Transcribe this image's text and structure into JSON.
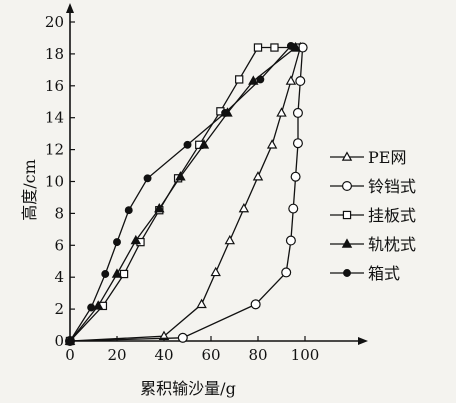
{
  "chart_data": {
    "type": "line",
    "title": "",
    "xlabel": "累积输沙量/g",
    "ylabel": "高度/cm",
    "xlim": [
      0,
      120
    ],
    "ylim": [
      0,
      20
    ],
    "xticks": [
      "0",
      "20",
      "40",
      "60",
      "80",
      "100"
    ],
    "yticks": [
      "0",
      "2",
      "4",
      "6",
      "8",
      "10",
      "12",
      "14",
      "16",
      "18",
      "20"
    ],
    "grid": false,
    "legend_position": "right",
    "series": [
      {
        "name": "PE网",
        "marker": "open-triangle",
        "x": [
          0,
          40,
          56,
          62,
          68,
          74,
          80,
          86,
          90,
          94,
          98
        ],
        "y": [
          0,
          0.3,
          2.3,
          4.3,
          6.3,
          8.3,
          10.3,
          12.3,
          14.3,
          16.3,
          18.4
        ]
      },
      {
        "name": "铃铛式",
        "marker": "open-circle",
        "x": [
          0,
          48,
          79,
          92,
          94,
          95,
          96,
          97,
          97,
          98,
          99
        ],
        "y": [
          0,
          0.2,
          2.3,
          4.3,
          6.3,
          8.3,
          10.3,
          12.4,
          14.3,
          16.3,
          18.4
        ]
      },
      {
        "name": "挂板式",
        "marker": "open-square",
        "x": [
          0,
          14,
          23,
          30,
          38,
          46,
          55,
          64,
          72,
          80,
          87,
          96
        ],
        "y": [
          0,
          2.2,
          4.2,
          6.2,
          8.2,
          10.2,
          12.3,
          14.4,
          16.4,
          18.4,
          18.4,
          18.4
        ]
      },
      {
        "name": "轨枕式",
        "marker": "filled-triangle",
        "x": [
          0,
          12,
          20,
          28,
          38,
          47,
          57,
          67,
          78,
          96
        ],
        "y": [
          0,
          2.2,
          4.2,
          6.3,
          8.3,
          10.3,
          12.3,
          14.3,
          16.3,
          18.4
        ]
      },
      {
        "name": "箱式",
        "marker": "filled-circle",
        "x": [
          0,
          9,
          15,
          20,
          25,
          33,
          50,
          66,
          81,
          94
        ],
        "y": [
          0,
          2.1,
          4.2,
          6.2,
          8.2,
          10.2,
          12.3,
          14.3,
          16.4,
          18.5
        ]
      }
    ]
  }
}
